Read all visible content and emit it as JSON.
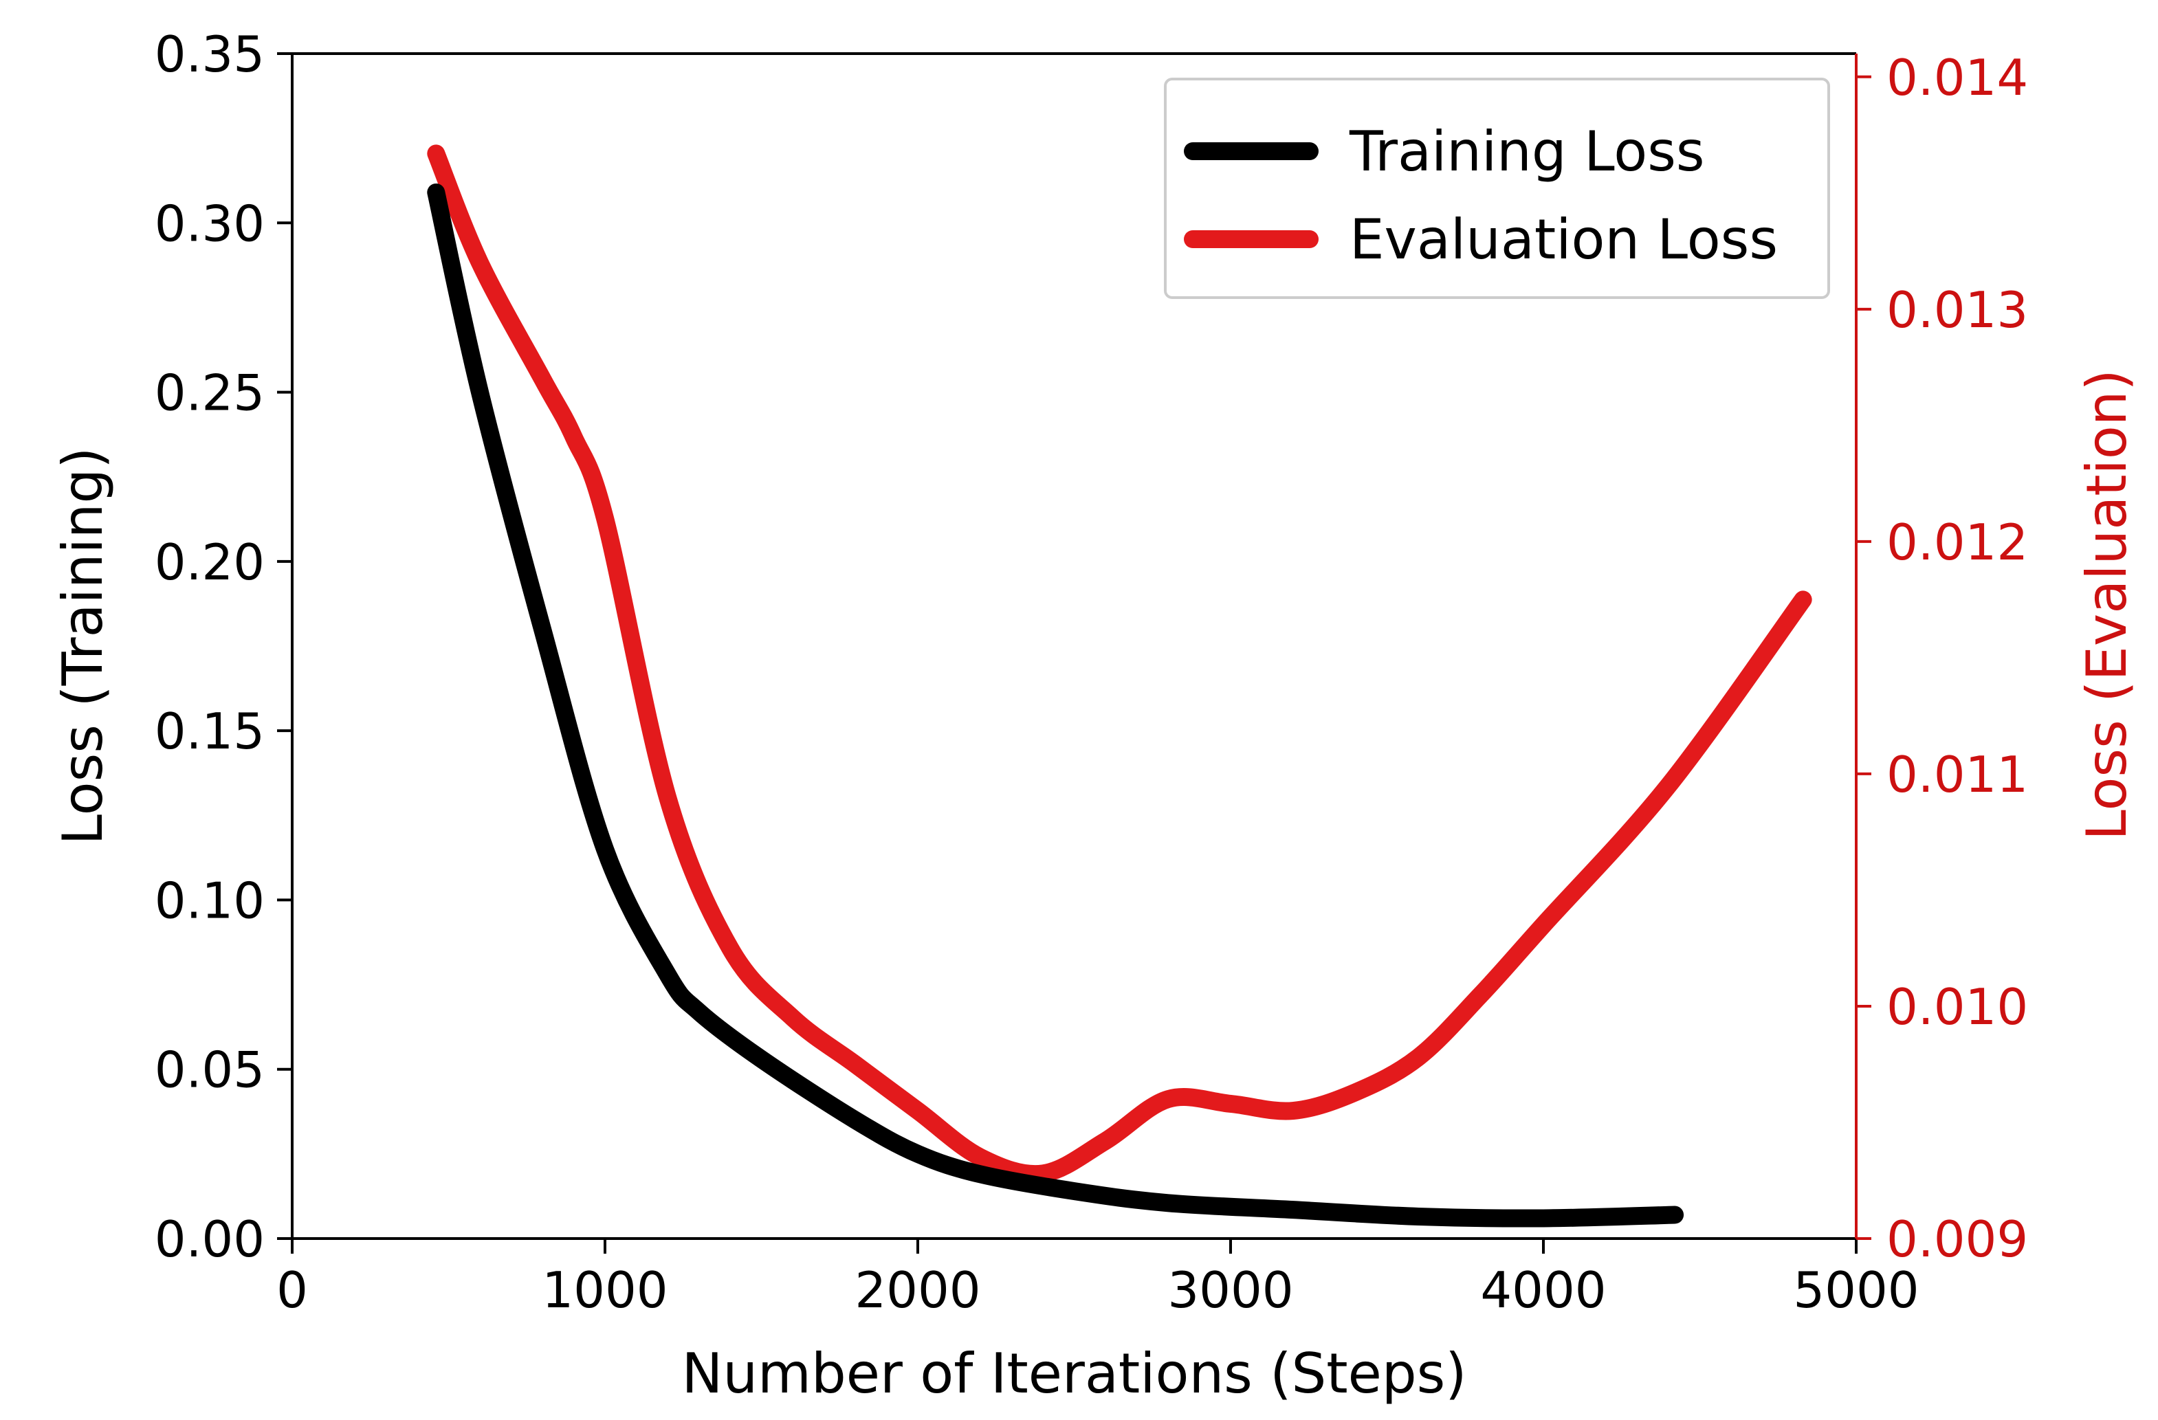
{
  "chart_data": {
    "type": "line",
    "xlabel": "Number of Iterations (Steps)",
    "ylabel_left": "Loss (Training)",
    "ylabel_right": "Loss (Evaluation)",
    "xlim": [
      0,
      5000
    ],
    "ylim_left": [
      0,
      0.35
    ],
    "ylim_right": [
      0.009,
      0.0141
    ],
    "x_ticks": [
      "0",
      "1000",
      "2000",
      "3000",
      "4000",
      "5000"
    ],
    "y_ticks_left": [
      "0.00",
      "0.05",
      "0.10",
      "0.15",
      "0.20",
      "0.25",
      "0.30",
      "0.35"
    ],
    "y_ticks_right": [
      "0.009",
      "0.010",
      "0.011",
      "0.012",
      "0.013",
      "0.014"
    ],
    "grid": false,
    "legend_position": "top-right",
    "colors": {
      "training": "#000000",
      "evaluation": "#e31a1c",
      "right_axis": "#cc1111"
    },
    "series": [
      {
        "name": "Training Loss",
        "axis": "left",
        "x": [
          460,
          600,
          800,
          1000,
          1200,
          1300,
          1500,
          1800,
          2000,
          2200,
          2500,
          2800,
          3200,
          3600,
          4000,
          4420
        ],
        "y": [
          0.309,
          0.25,
          0.18,
          0.115,
          0.078,
          0.067,
          0.053,
          0.035,
          0.025,
          0.019,
          0.014,
          0.0105,
          0.0085,
          0.0065,
          0.006,
          0.007
        ]
      },
      {
        "name": "Evaluation Loss",
        "axis": "right",
        "x": [
          460,
          600,
          800,
          900,
          1000,
          1200,
          1400,
          1600,
          1800,
          2000,
          2200,
          2400,
          2600,
          2800,
          3000,
          3200,
          3400,
          3600,
          3800,
          4000,
          4400,
          4830
        ],
        "y": [
          0.01367,
          0.0132,
          0.0127,
          0.01245,
          0.0121,
          0.0109,
          0.01025,
          0.00995,
          0.00975,
          0.00955,
          0.00935,
          0.00928,
          0.00942,
          0.0096,
          0.00958,
          0.00955,
          0.00963,
          0.00978,
          0.01005,
          0.01035,
          0.01095,
          0.01175
        ]
      }
    ]
  }
}
